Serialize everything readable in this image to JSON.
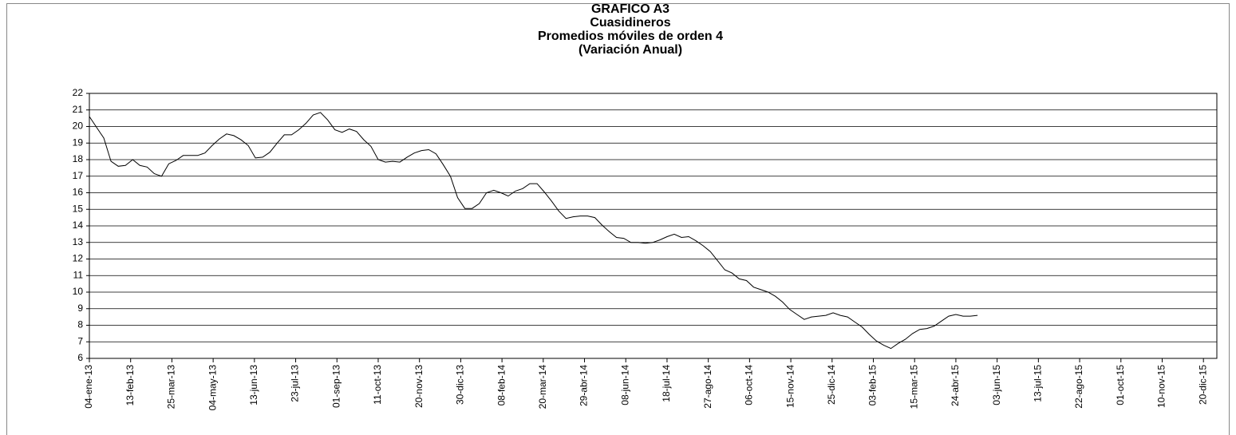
{
  "chart_data": {
    "type": "line",
    "title": [
      "GRAFICO A3",
      "Cuasidineros",
      "Promedios móviles de orden 4",
      "(Variación Anual)"
    ],
    "x": [
      "2013-01-04",
      "2013-01-11",
      "2013-01-18",
      "2013-01-25",
      "2013-02-01",
      "2013-02-08",
      "2013-02-15",
      "2013-02-22",
      "2013-03-01",
      "2013-03-08",
      "2013-03-15",
      "2013-03-22",
      "2013-03-29",
      "2013-04-05",
      "2013-04-12",
      "2013-04-19",
      "2013-04-26",
      "2013-05-03",
      "2013-05-10",
      "2013-05-17",
      "2013-05-24",
      "2013-05-31",
      "2013-06-07",
      "2013-06-14",
      "2013-06-21",
      "2013-06-28",
      "2013-07-05",
      "2013-07-12",
      "2013-07-19",
      "2013-07-26",
      "2013-08-02",
      "2013-08-09",
      "2013-08-16",
      "2013-08-23",
      "2013-08-30",
      "2013-09-06",
      "2013-09-13",
      "2013-09-20",
      "2013-09-27",
      "2013-10-04",
      "2013-10-11",
      "2013-10-18",
      "2013-10-25",
      "2013-11-01",
      "2013-11-08",
      "2013-11-15",
      "2013-11-22",
      "2013-11-29",
      "2013-12-06",
      "2013-12-13",
      "2013-12-20",
      "2013-12-27",
      "2014-01-03",
      "2014-01-10",
      "2014-01-17",
      "2014-01-24",
      "2014-01-31",
      "2014-02-07",
      "2014-02-14",
      "2014-02-21",
      "2014-02-28",
      "2014-03-07",
      "2014-03-14",
      "2014-03-21",
      "2014-03-28",
      "2014-04-04",
      "2014-04-11",
      "2014-04-18",
      "2014-04-25",
      "2014-05-02",
      "2014-05-09",
      "2014-05-16",
      "2014-05-23",
      "2014-05-30",
      "2014-06-06",
      "2014-06-13",
      "2014-06-20",
      "2014-06-27",
      "2014-07-04",
      "2014-07-11",
      "2014-07-18",
      "2014-07-25",
      "2014-08-01",
      "2014-08-08",
      "2014-08-15",
      "2014-08-22",
      "2014-08-29",
      "2014-09-05",
      "2014-09-12",
      "2014-09-19",
      "2014-09-26",
      "2014-10-03",
      "2014-10-10",
      "2014-10-17",
      "2014-10-24",
      "2014-10-31",
      "2014-11-07",
      "2014-11-14",
      "2014-11-21",
      "2014-11-28",
      "2014-12-05",
      "2014-12-12",
      "2014-12-19",
      "2014-12-26",
      "2015-01-02",
      "2015-01-09",
      "2015-01-16",
      "2015-01-23",
      "2015-01-30",
      "2015-02-06",
      "2015-02-13",
      "2015-02-20",
      "2015-02-27",
      "2015-03-06",
      "2015-03-13",
      "2015-03-20",
      "2015-03-27",
      "2015-04-03",
      "2015-04-10",
      "2015-04-17",
      "2015-04-24",
      "2015-05-01",
      "2015-05-08",
      "2015-05-15"
    ],
    "series": [
      {
        "name": "Cuasidineros",
        "color": "#000000",
        "values": [
          20.6,
          19.95,
          19.3,
          17.9,
          17.6,
          17.65,
          18.0,
          17.65,
          17.55,
          17.15,
          17.0,
          17.75,
          17.95,
          18.25,
          18.25,
          18.25,
          18.4,
          18.85,
          19.25,
          19.55,
          19.45,
          19.2,
          18.85,
          18.1,
          18.15,
          18.45,
          19.0,
          19.5,
          19.5,
          19.8,
          20.2,
          20.7,
          20.85,
          20.4,
          19.8,
          19.65,
          19.85,
          19.7,
          19.2,
          18.8,
          18.0,
          17.85,
          17.9,
          17.85,
          18.15,
          18.4,
          18.55,
          18.6,
          18.35,
          17.7,
          17.0,
          15.7,
          15.05,
          15.05,
          15.35,
          16.0,
          16.15,
          16.0,
          15.8,
          16.1,
          16.25,
          16.55,
          16.55,
          16.05,
          15.5,
          14.9,
          14.45,
          14.55,
          14.6,
          14.6,
          14.5,
          14.05,
          13.65,
          13.3,
          13.25,
          13.0,
          13.0,
          12.95,
          13.0,
          13.15,
          13.35,
          13.5,
          13.3,
          13.35,
          13.1,
          12.8,
          12.45,
          11.9,
          11.35,
          11.15,
          10.8,
          10.7,
          10.3,
          10.15,
          10.0,
          9.75,
          9.4,
          8.95,
          8.65,
          8.35,
          8.5,
          8.55,
          8.6,
          8.75,
          8.6,
          8.5,
          8.2,
          7.9,
          7.45,
          7.05,
          6.8,
          6.6,
          6.9,
          7.15,
          7.5,
          7.75,
          7.8,
          7.95,
          8.25,
          8.55,
          8.65,
          8.55,
          8.55,
          8.6
        ]
      }
    ],
    "xlim": [
      "2013-01-04",
      "2016-01-02"
    ],
    "xticks": [
      {
        "value": "2013-01-04",
        "label": "04-ene-13"
      },
      {
        "value": "2013-02-13",
        "label": "13-feb-13"
      },
      {
        "value": "2013-03-25",
        "label": "25-mar-13"
      },
      {
        "value": "2013-05-04",
        "label": "04-may-13"
      },
      {
        "value": "2013-06-13",
        "label": "13-jun-13"
      },
      {
        "value": "2013-07-23",
        "label": "23-jul-13"
      },
      {
        "value": "2013-09-01",
        "label": "01-sep-13"
      },
      {
        "value": "2013-10-11",
        "label": "11-oct-13"
      },
      {
        "value": "2013-11-20",
        "label": "20-nov-13"
      },
      {
        "value": "2013-12-30",
        "label": "30-dic-13"
      },
      {
        "value": "2014-02-08",
        "label": "08-feb-14"
      },
      {
        "value": "2014-03-20",
        "label": "20-mar-14"
      },
      {
        "value": "2014-04-29",
        "label": "29-abr-14"
      },
      {
        "value": "2014-06-08",
        "label": "08-jun-14"
      },
      {
        "value": "2014-07-18",
        "label": "18-jul-14"
      },
      {
        "value": "2014-08-27",
        "label": "27-ago-14"
      },
      {
        "value": "2014-10-06",
        "label": "06-oct-14"
      },
      {
        "value": "2014-11-15",
        "label": "15-nov-14"
      },
      {
        "value": "2014-12-25",
        "label": "25-dic-14"
      },
      {
        "value": "2015-02-03",
        "label": "03-feb-15"
      },
      {
        "value": "2015-03-15",
        "label": "15-mar-15"
      },
      {
        "value": "2015-04-24",
        "label": "24-abr-15"
      },
      {
        "value": "2015-06-03",
        "label": "03-jun-15"
      },
      {
        "value": "2015-07-13",
        "label": "13-jul-15"
      },
      {
        "value": "2015-08-22",
        "label": "22-ago-15"
      },
      {
        "value": "2015-10-01",
        "label": "01-oct-15"
      },
      {
        "value": "2015-11-10",
        "label": "10-nov-15"
      },
      {
        "value": "2015-12-20",
        "label": "20-dic-15"
      }
    ],
    "ylim": [
      6,
      22
    ],
    "yticks": [
      6,
      7,
      8,
      9,
      10,
      11,
      12,
      13,
      14,
      15,
      16,
      17,
      18,
      19,
      20,
      21,
      22
    ],
    "grid": true
  }
}
